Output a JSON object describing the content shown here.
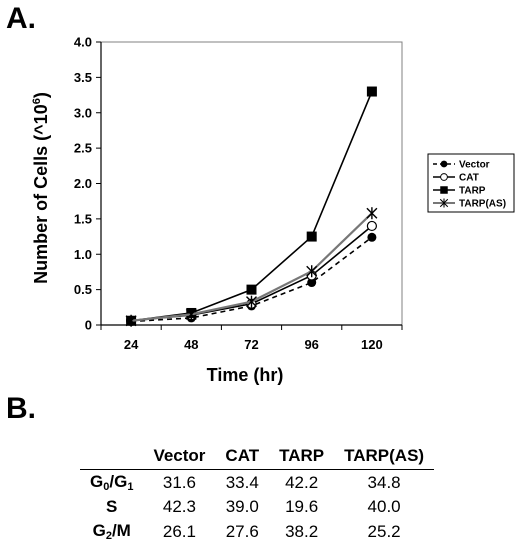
{
  "panel_a_label": "A.",
  "panel_b_label": "B.",
  "chart_data": {
    "type": "line",
    "title": "",
    "xlabel": "Time (hr)",
    "ylabel_main": "Number of Cells (^10",
    "ylabel_sup": "6",
    "ylabel_close": ")",
    "categories": [
      "24",
      "48",
      "72",
      "96",
      "120"
    ],
    "ylim": [
      0,
      4.0
    ],
    "yticks": [
      "0",
      "0.5",
      "1.0",
      "1.5",
      "2.0",
      "2.5",
      "3.0",
      "3.5",
      "4.0"
    ],
    "grid": false,
    "legend_placement": "right",
    "series": [
      {
        "name": "Vector",
        "values": [
          0.05,
          0.1,
          0.27,
          0.6,
          1.24
        ],
        "color": "#000000",
        "marker": "filled-circle",
        "dash": true
      },
      {
        "name": "CAT",
        "values": [
          0.06,
          0.14,
          0.3,
          0.7,
          1.4
        ],
        "color": "#000000",
        "marker": "open-circle",
        "dash": false
      },
      {
        "name": "TARP",
        "values": [
          0.06,
          0.17,
          0.5,
          1.25,
          3.3
        ],
        "color": "#000000",
        "marker": "filled-square",
        "dash": false
      },
      {
        "name": "TARP(AS)",
        "values": [
          0.06,
          0.15,
          0.33,
          0.76,
          1.58
        ],
        "color": "#777777",
        "marker": "asterisk",
        "dash": false
      }
    ]
  },
  "table": {
    "headers": [
      "Vector",
      "CAT",
      "TARP",
      "TARP(AS)"
    ],
    "rows": [
      {
        "phase": "G",
        "sub1": "0",
        "mid": "/G",
        "sub2": "1",
        "values": [
          "31.6",
          "33.4",
          "42.2",
          "34.8"
        ]
      },
      {
        "phase": "S",
        "sub1": "",
        "mid": "",
        "sub2": "",
        "values": [
          "42.3",
          "39.0",
          "19.6",
          "40.0"
        ]
      },
      {
        "phase": "G",
        "sub1": "2",
        "mid": "/M",
        "sub2": "",
        "values": [
          "26.1",
          "27.6",
          "38.2",
          "25.2"
        ]
      }
    ]
  }
}
